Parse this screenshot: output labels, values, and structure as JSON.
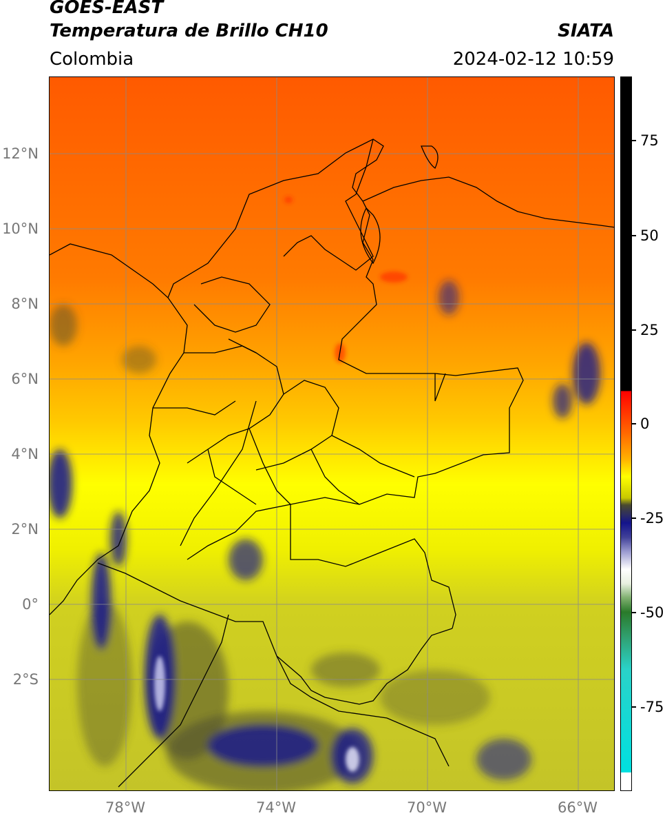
{
  "header": {
    "title_line1": "GOES-EAST",
    "title_line2": "Temperatura de Brillo CH10",
    "brand": "SIATA",
    "region": "Colombia",
    "datetime": "2024-02-12 10:59"
  },
  "map": {
    "lat_labels": [
      "12°N",
      "10°N",
      "8°N",
      "6°N",
      "4°N",
      "2°N",
      "0°",
      "2°S"
    ],
    "lon_labels": [
      "78°W",
      "74°W",
      "70°W",
      "66°W"
    ],
    "colors": {
      "warm_top": "#ff6a00",
      "mid_orange": "#ffa500",
      "yellow": "#ffff00",
      "olive": "#c8c820",
      "cold_cloud": "#14148c",
      "border": "#000000",
      "grid": "#888888"
    }
  },
  "colorbar": {
    "ticks": [
      "75",
      "50",
      "25",
      "0",
      "-25",
      "-50",
      "-75"
    ],
    "colors": [
      "#000000",
      "#ff0000",
      "#ff8000",
      "#ffff00",
      "#c8c800",
      "#14148c",
      "#ffffff",
      "#2a7a2a",
      "#00e0e0"
    ]
  }
}
